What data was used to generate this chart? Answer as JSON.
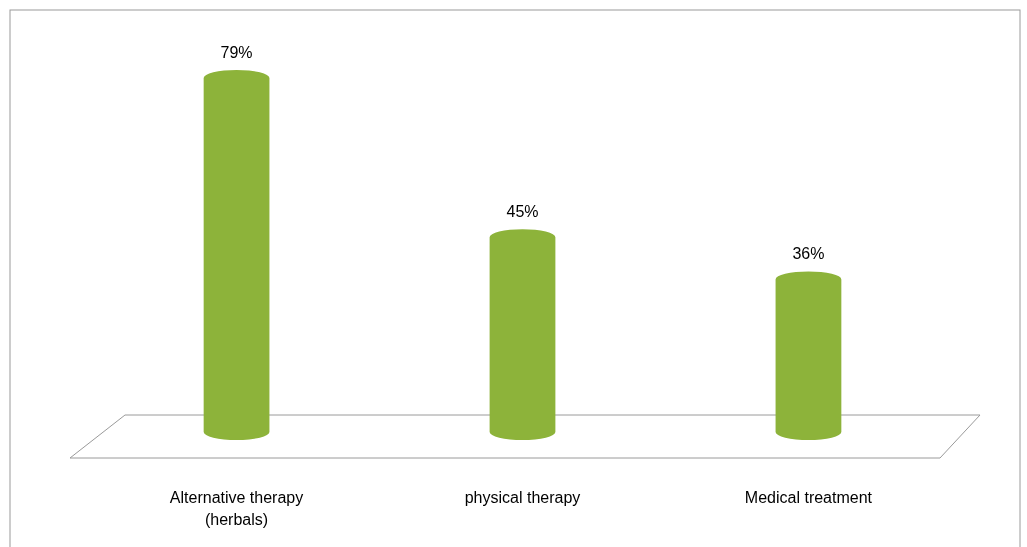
{
  "chart_data": {
    "type": "bar",
    "categories": [
      "Alternative therapy (herbals)",
      "physical therapy",
      "Medical treatment"
    ],
    "values": [
      79,
      45,
      36
    ],
    "value_labels": [
      "79%",
      "45%",
      "36%"
    ],
    "color": "#8db33a"
  }
}
